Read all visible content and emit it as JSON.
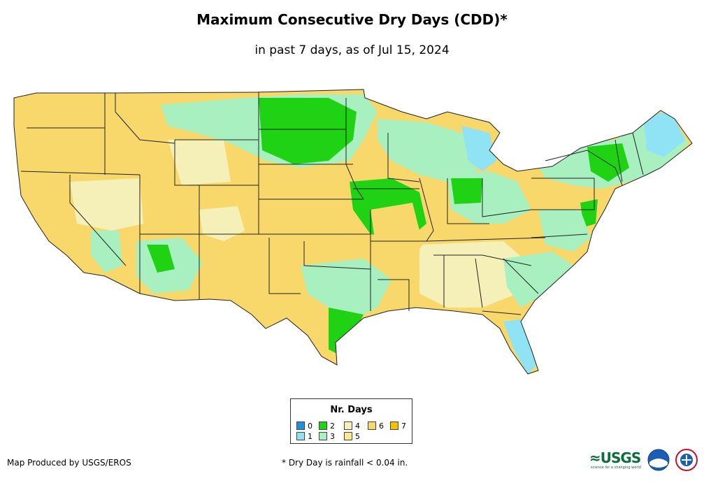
{
  "title": "Maximum Consecutive Dry Days (CDD)*",
  "subtitle": "in past 7 days, as of Jul 15, 2024",
  "legend": {
    "title": "Nr. Days",
    "items": [
      {
        "label": "0",
        "color": "#1E90E0"
      },
      {
        "label": "1",
        "color": "#8FE3F5"
      },
      {
        "label": "2",
        "color": "#1FD314"
      },
      {
        "label": "3",
        "color": "#A8F0C0"
      },
      {
        "label": "4",
        "color": "#F5F0B8"
      },
      {
        "label": "5",
        "color": "#FCE98C"
      },
      {
        "label": "6",
        "color": "#F8D86A"
      },
      {
        "label": "7",
        "color": "#F5C000"
      }
    ]
  },
  "credit": "Map Produced by USGS/EROS",
  "footnote": "* Dry Day is rainfall < 0.04 in.",
  "logos": {
    "usgs_text": "≈USGS",
    "usgs_tagline": "science for a changing world",
    "noaa_icon": "noaa-logo-icon",
    "nws_icon": "national-weather-service-logo-icon"
  },
  "map_colors": {
    "state_border": "#222222",
    "background": "#ffffff"
  }
}
